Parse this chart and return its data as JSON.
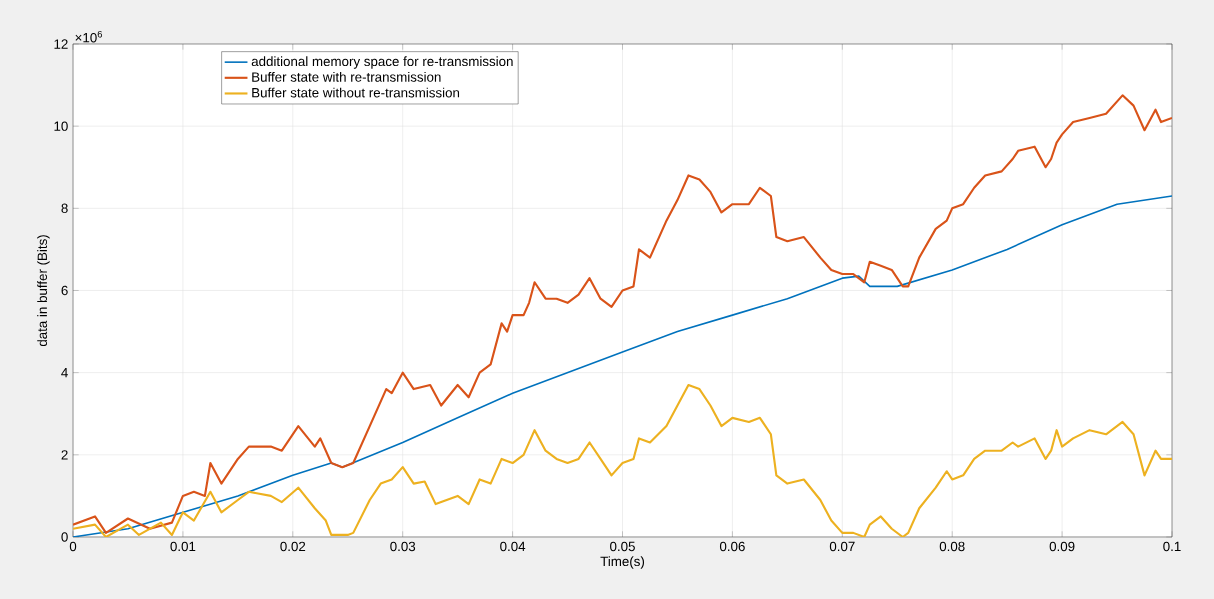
{
  "chart_data": {
    "type": "line",
    "xlabel": "Time(s)",
    "ylabel": "data in buffer (Bits)",
    "annotations": [
      "×10$^{6}$"
    ],
    "xlim": [
      0,
      0.1
    ],
    "ylim": [
      0,
      12
    ],
    "xticks": [
      0,
      0.01,
      0.02,
      0.03,
      0.04,
      0.05,
      0.06,
      0.07,
      0.08,
      0.09,
      0.1
    ],
    "yticks": [
      0,
      2,
      4,
      6,
      8,
      10,
      12
    ],
    "grid": true,
    "legend": "top left",
    "marker": "none",
    "line_style": "solid",
    "series": [
      {
        "name": "additional memory space for re-transmission",
        "color": "#0072bd",
        "x": [
          0,
          0.005,
          0.01,
          0.015,
          0.02,
          0.0235,
          0.0245,
          0.03,
          0.035,
          0.04,
          0.045,
          0.05,
          0.055,
          0.06,
          0.065,
          0.07,
          0.0715,
          0.0725,
          0.075,
          0.08,
          0.085,
          0.09,
          0.095,
          0.1
        ],
        "values": [
          0,
          0.2,
          0.6,
          1.0,
          1.5,
          1.8,
          1.7,
          2.3,
          2.9,
          3.5,
          4.0,
          4.5,
          5.0,
          5.4,
          5.8,
          6.3,
          6.35,
          6.1,
          6.1,
          6.5,
          7.0,
          7.6,
          8.1,
          8.3
        ]
      },
      {
        "name": "Buffer state with re-transmission",
        "color": "#d95319",
        "x": [
          0,
          0.002,
          0.003,
          0.005,
          0.007,
          0.009,
          0.01,
          0.011,
          0.012,
          0.0125,
          0.0135,
          0.015,
          0.016,
          0.018,
          0.019,
          0.0205,
          0.022,
          0.0225,
          0.0235,
          0.0245,
          0.0255,
          0.027,
          0.0285,
          0.029,
          0.03,
          0.031,
          0.0325,
          0.0335,
          0.035,
          0.036,
          0.037,
          0.038,
          0.039,
          0.0395,
          0.04,
          0.041,
          0.0415,
          0.042,
          0.043,
          0.044,
          0.045,
          0.046,
          0.047,
          0.048,
          0.049,
          0.05,
          0.051,
          0.0515,
          0.0525,
          0.054,
          0.055,
          0.056,
          0.057,
          0.058,
          0.059,
          0.06,
          0.0615,
          0.0625,
          0.0635,
          0.064,
          0.065,
          0.0665,
          0.068,
          0.069,
          0.07,
          0.071,
          0.072,
          0.0725,
          0.0735,
          0.0745,
          0.0755,
          0.076,
          0.077,
          0.0785,
          0.0795,
          0.08,
          0.081,
          0.082,
          0.083,
          0.0845,
          0.0855,
          0.086,
          0.0875,
          0.0885,
          0.089,
          0.0895,
          0.09,
          0.091,
          0.0925,
          0.094,
          0.0955,
          0.0965,
          0.0975,
          0.0985,
          0.099,
          0.1
        ],
        "values": [
          0.3,
          0.5,
          0.1,
          0.45,
          0.2,
          0.35,
          1.0,
          1.1,
          1.0,
          1.8,
          1.3,
          1.9,
          2.2,
          2.2,
          2.1,
          2.7,
          2.2,
          2.4,
          1.8,
          1.7,
          1.8,
          2.7,
          3.6,
          3.5,
          4.0,
          3.6,
          3.7,
          3.2,
          3.7,
          3.4,
          4.0,
          4.2,
          5.2,
          5.0,
          5.4,
          5.4,
          5.7,
          6.2,
          5.8,
          5.8,
          5.7,
          5.9,
          6.3,
          5.8,
          5.6,
          6.0,
          6.1,
          7.0,
          6.8,
          7.7,
          8.2,
          8.8,
          8.7,
          8.4,
          7.9,
          8.1,
          8.1,
          8.5,
          8.3,
          7.3,
          7.2,
          7.3,
          6.8,
          6.5,
          6.4,
          6.4,
          6.2,
          6.7,
          6.6,
          6.5,
          6.1,
          6.1,
          6.8,
          7.5,
          7.7,
          8.0,
          8.1,
          8.5,
          8.8,
          8.9,
          9.2,
          9.4,
          9.5,
          9.0,
          9.2,
          9.6,
          9.8,
          10.1,
          10.2,
          10.3,
          10.75,
          10.5,
          9.9,
          10.4,
          10.1,
          10.2
        ]
      },
      {
        "name": "Buffer state without re-transmission",
        "color": "#edb120",
        "x": [
          0,
          0.002,
          0.003,
          0.005,
          0.006,
          0.008,
          0.009,
          0.01,
          0.011,
          0.0125,
          0.0135,
          0.015,
          0.016,
          0.018,
          0.019,
          0.0205,
          0.022,
          0.023,
          0.0235,
          0.025,
          0.0255,
          0.027,
          0.028,
          0.029,
          0.03,
          0.031,
          0.032,
          0.033,
          0.034,
          0.035,
          0.036,
          0.037,
          0.038,
          0.039,
          0.04,
          0.041,
          0.042,
          0.043,
          0.044,
          0.045,
          0.046,
          0.047,
          0.048,
          0.049,
          0.05,
          0.051,
          0.0515,
          0.0525,
          0.054,
          0.055,
          0.056,
          0.057,
          0.058,
          0.059,
          0.06,
          0.0615,
          0.0625,
          0.0635,
          0.064,
          0.065,
          0.0665,
          0.068,
          0.069,
          0.07,
          0.071,
          0.072,
          0.0725,
          0.0735,
          0.0745,
          0.0755,
          0.076,
          0.077,
          0.0785,
          0.0795,
          0.08,
          0.081,
          0.082,
          0.083,
          0.0845,
          0.0855,
          0.086,
          0.0875,
          0.0885,
          0.089,
          0.0895,
          0.09,
          0.091,
          0.0925,
          0.094,
          0.0955,
          0.0965,
          0.0975,
          0.0985,
          0.099,
          0.1
        ],
        "values": [
          0.2,
          0.3,
          0.0,
          0.3,
          0.05,
          0.35,
          0.05,
          0.6,
          0.4,
          1.1,
          0.6,
          0.9,
          1.1,
          1.0,
          0.85,
          1.2,
          0.7,
          0.4,
          0.05,
          0.05,
          0.1,
          0.9,
          1.3,
          1.4,
          1.7,
          1.3,
          1.35,
          0.8,
          0.9,
          1.0,
          0.8,
          1.4,
          1.3,
          1.9,
          1.8,
          2.0,
          2.6,
          2.1,
          1.9,
          1.8,
          1.9,
          2.3,
          1.9,
          1.5,
          1.8,
          1.9,
          2.4,
          2.3,
          2.7,
          3.2,
          3.7,
          3.6,
          3.2,
          2.7,
          2.9,
          2.8,
          2.9,
          2.5,
          1.5,
          1.3,
          1.4,
          0.9,
          0.4,
          0.1,
          0.1,
          0.0,
          0.3,
          0.5,
          0.2,
          0.0,
          0.1,
          0.7,
          1.2,
          1.6,
          1.4,
          1.5,
          1.9,
          2.1,
          2.1,
          2.3,
          2.2,
          2.4,
          1.9,
          2.1,
          2.6,
          2.2,
          2.4,
          2.6,
          2.5,
          2.8,
          2.5,
          1.5,
          2.1,
          1.9,
          1.9
        ]
      }
    ]
  }
}
